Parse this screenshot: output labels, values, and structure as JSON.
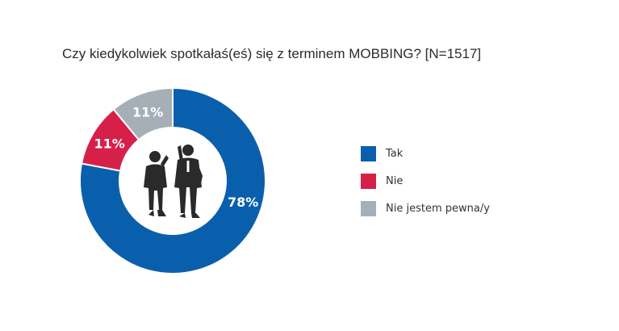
{
  "chart_data": {
    "type": "pie",
    "variant": "donut",
    "title": "Czy kiedykolwiek spotkałaś(eś) się z terminem MOBBING? [N=1517]",
    "categories": [
      "Tak",
      "Nie",
      "Nie jestem pewna/y"
    ],
    "values": [
      78,
      11,
      11
    ],
    "value_labels": [
      "78%",
      "11%",
      "11%"
    ],
    "colors": [
      "#0a5fad",
      "#d6204a",
      "#a7afb6"
    ],
    "legend_position": "right",
    "center_image": "two-businessmen-silhouette"
  }
}
